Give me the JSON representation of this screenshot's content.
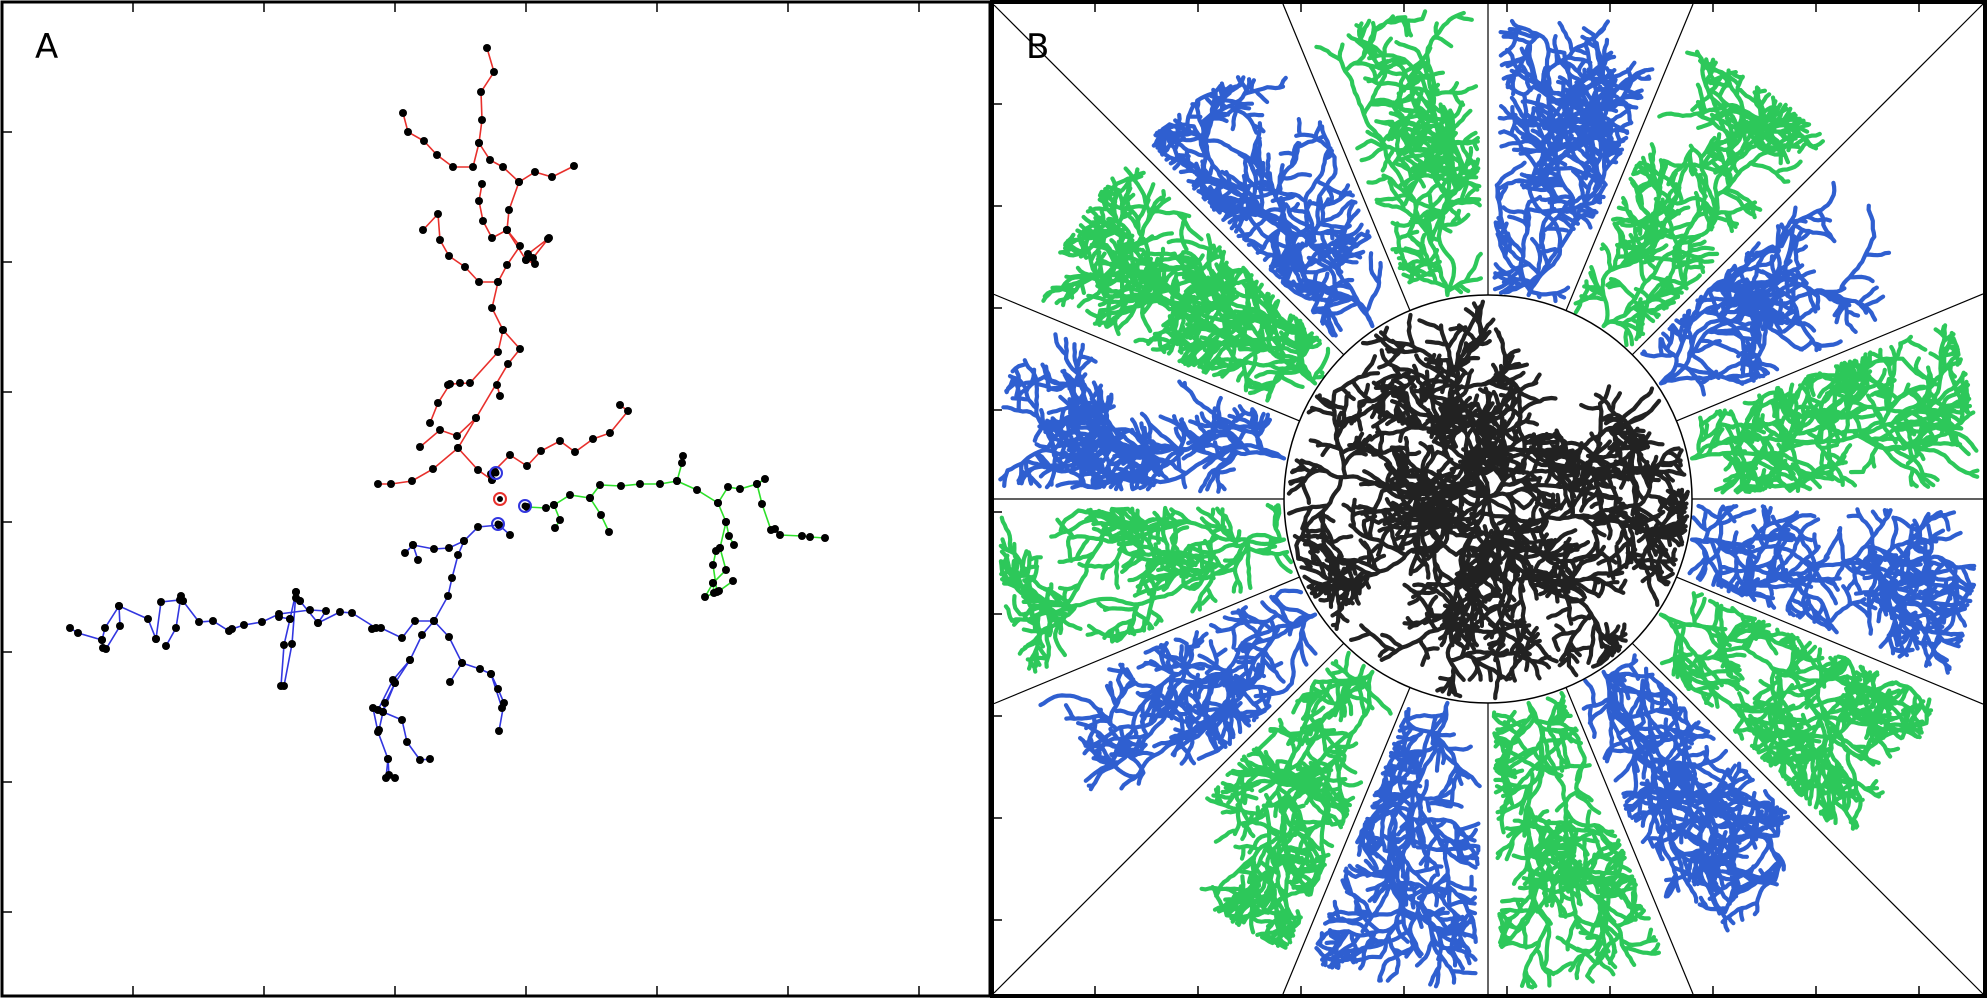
{
  "panels": [
    {
      "id": "A",
      "label": "A",
      "description_colors": [
        "#e8302c",
        "#3236e0",
        "#2ee02a"
      ],
      "seed_color": "#e8302c",
      "node_color": "#000000"
    },
    {
      "id": "B",
      "label": "B",
      "colors": {
        "core": "#222222",
        "blue": "#2f5fd0",
        "green": "#2dc85a"
      },
      "sector_count": 16,
      "branches_per_sector": 1
    }
  ]
}
